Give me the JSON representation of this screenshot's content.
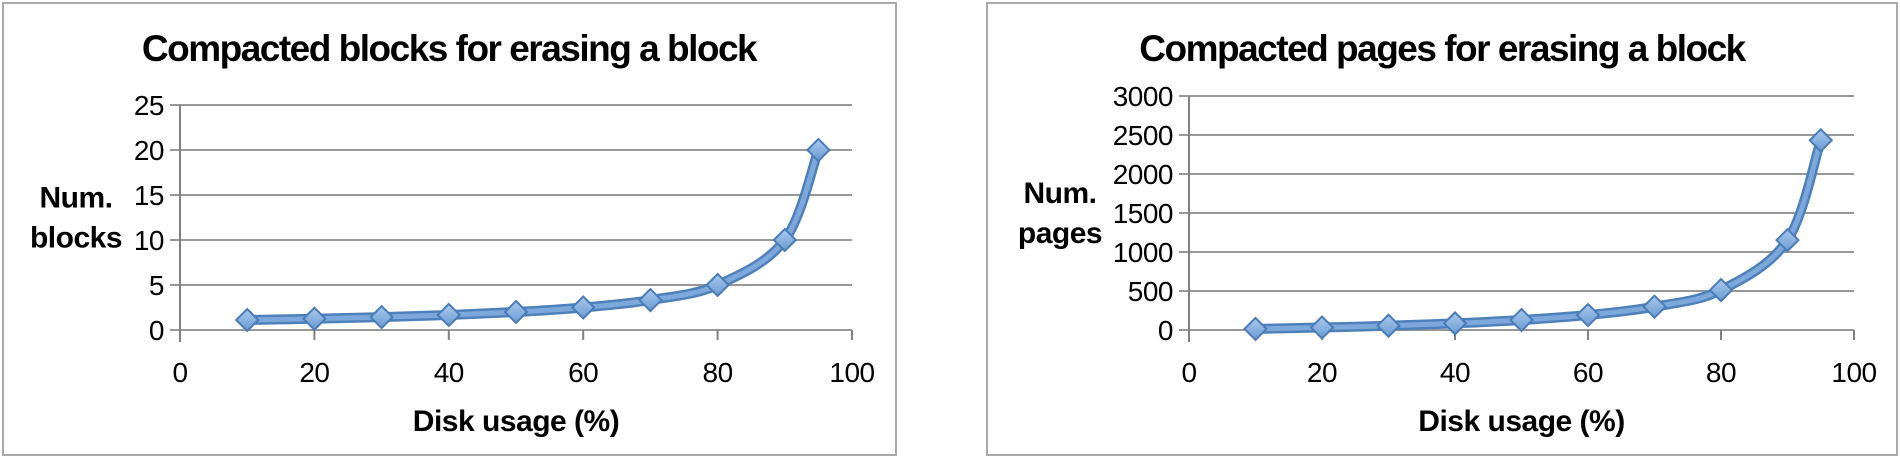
{
  "figure": {
    "background": "#ffffff",
    "panel_border_color": "#a9a9a9"
  },
  "colors": {
    "line_base": "#4e80ba",
    "line_highlight": "#7da8dc",
    "marker_fill_top": "#a9c9ed",
    "marker_fill_bottom": "#6b9bd2",
    "marker_stroke": "#4a7cb8",
    "gridline": "#989898",
    "axis_line": "#808080",
    "text": "#000000"
  },
  "chart_data": [
    {
      "type": "line",
      "title": "Compacted blocks for erasing a block",
      "xlabel": "Disk usage (%)",
      "ylabel_lines": [
        "Num.",
        "blocks"
      ],
      "x": [
        10,
        20,
        30,
        40,
        50,
        60,
        70,
        80,
        90,
        95
      ],
      "y": [
        1.11,
        1.25,
        1.43,
        1.67,
        2,
        2.5,
        3.33,
        5,
        10,
        20
      ],
      "xlim": [
        0,
        100
      ],
      "ylim": [
        0,
        25
      ],
      "x_ticks": [
        0,
        20,
        40,
        60,
        80,
        100
      ],
      "y_ticks": [
        0,
        5,
        10,
        15,
        20,
        25
      ],
      "grid": true,
      "legend": "none",
      "marker": "diamond"
    },
    {
      "type": "line",
      "title": "Compacted pages for erasing a block",
      "xlabel": "Disk usage (%)",
      "ylabel_lines": [
        "Num.",
        "pages"
      ],
      "x": [
        10,
        20,
        30,
        40,
        50,
        60,
        70,
        80,
        90,
        95
      ],
      "y": [
        14,
        32,
        55,
        85,
        128,
        192,
        299,
        512,
        1152,
        2432
      ],
      "xlim": [
        0,
        100
      ],
      "ylim": [
        0,
        3000
      ],
      "x_ticks": [
        0,
        20,
        40,
        60,
        80,
        100
      ],
      "y_ticks": [
        0,
        500,
        1000,
        1500,
        2000,
        2500,
        3000
      ],
      "grid": true,
      "legend": "none",
      "marker": "diamond"
    }
  ]
}
